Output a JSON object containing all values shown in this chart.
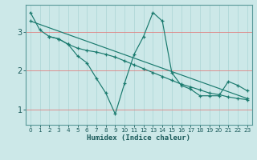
{
  "xlabel": "Humidex (Indice chaleur)",
  "background_color": "#cce8e8",
  "grid_color": "#b0d8d8",
  "line_color": "#1a7a6e",
  "xlim": [
    -0.5,
    23.5
  ],
  "ylim": [
    0.6,
    3.7
  ],
  "yticks": [
    1,
    2,
    3
  ],
  "xticks": [
    0,
    1,
    2,
    3,
    4,
    5,
    6,
    7,
    8,
    9,
    10,
    11,
    12,
    13,
    14,
    15,
    16,
    17,
    18,
    19,
    20,
    21,
    22,
    23
  ],
  "line1_x": [
    0,
    1,
    2,
    3,
    4,
    5,
    6,
    7,
    8,
    9,
    10,
    11,
    12,
    13,
    14,
    15,
    16,
    17,
    18,
    19,
    20,
    21,
    22,
    23
  ],
  "line1_y": [
    3.5,
    3.05,
    2.88,
    2.82,
    2.68,
    2.38,
    2.2,
    1.8,
    1.42,
    0.88,
    1.68,
    2.42,
    2.88,
    3.5,
    3.28,
    1.95,
    1.62,
    1.52,
    1.35,
    1.35,
    1.35,
    1.72,
    1.62,
    1.48
  ],
  "line2_x": [
    0,
    23
  ],
  "line2_y": [
    3.28,
    1.28
  ],
  "line3_x": [
    2,
    3,
    4,
    5,
    6,
    7,
    8,
    9,
    10,
    11,
    12,
    13,
    14,
    15,
    16,
    17,
    18,
    19,
    20,
    21,
    22,
    23
  ],
  "line3_y": [
    2.88,
    2.82,
    2.68,
    2.58,
    2.52,
    2.48,
    2.42,
    2.35,
    2.25,
    2.15,
    2.05,
    1.95,
    1.85,
    1.75,
    1.65,
    1.58,
    1.5,
    1.42,
    1.38,
    1.32,
    1.28,
    1.25
  ]
}
